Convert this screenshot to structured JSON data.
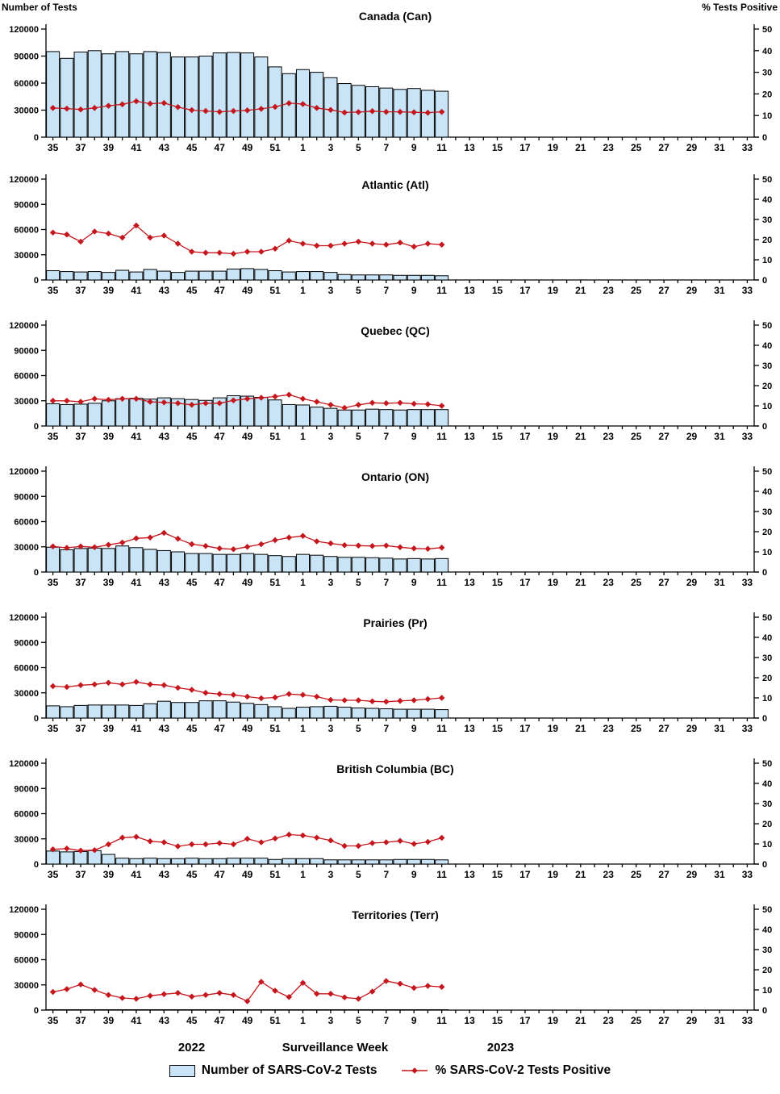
{
  "header": {
    "left_axis_title": "Number of Tests",
    "right_axis_title": "%  Tests Positive"
  },
  "footer": {
    "year_left": "2022",
    "axis_title": "Surveillance Week",
    "year_right": "2023"
  },
  "legend": {
    "tests_label": "Number of SARS-CoV-2 Tests",
    "pct_label": "% SARS-CoV-2 Tests Positive"
  },
  "colors": {
    "bar_fill": "#C8E4F6",
    "bar_stroke": "#000000",
    "line": "#C4161C",
    "axis": "#000000"
  },
  "axis": {
    "ylim_left": [
      0,
      120000
    ],
    "left_tick_step": 30000,
    "ylim_right": [
      0,
      50
    ],
    "right_tick_step": 10,
    "weeks_2022": [
      35,
      36,
      37,
      38,
      39,
      40,
      41,
      42,
      43,
      44,
      45,
      46,
      47,
      48,
      49,
      50,
      51,
      52
    ],
    "weeks_2023": [
      1,
      2,
      3,
      4,
      5,
      6,
      7,
      8,
      9,
      10,
      11,
      12,
      13,
      14,
      15,
      16,
      17,
      18,
      19,
      20,
      21,
      22,
      23,
      24,
      25,
      26,
      27,
      28,
      29,
      30,
      31,
      32,
      33
    ]
  },
  "chart_data": [
    {
      "type": "bar+line",
      "title": "Canada (Can)",
      "weeks": [
        35,
        36,
        37,
        38,
        39,
        40,
        41,
        42,
        43,
        44,
        45,
        46,
        47,
        48,
        49,
        50,
        51,
        52,
        1,
        2,
        3,
        4,
        5,
        6,
        7,
        8,
        9,
        10,
        11
      ],
      "tests": [
        95000,
        87500,
        94500,
        96000,
        92500,
        95000,
        92500,
        95000,
        94000,
        89000,
        89000,
        90000,
        93500,
        94000,
        93500,
        89000,
        78000,
        70500,
        75000,
        72000,
        66000,
        59500,
        57500,
        56000,
        54500,
        53000,
        54000,
        52000,
        51000
      ],
      "pct_positive": [
        13.5,
        13.2,
        12.8,
        13.5,
        14.5,
        15.2,
        16.6,
        15.5,
        15.8,
        13.9,
        12.5,
        12.1,
        11.7,
        12.1,
        12.4,
        13.1,
        14.0,
        15.7,
        15.3,
        13.5,
        12.6,
        11.4,
        11.6,
        12.0,
        11.7,
        11.7,
        11.5,
        11.3,
        11.7
      ]
    },
    {
      "type": "bar+line",
      "title": "Atlantic (Atl)",
      "weeks": [
        35,
        36,
        37,
        38,
        39,
        40,
        41,
        42,
        43,
        44,
        45,
        46,
        47,
        48,
        49,
        50,
        51,
        52,
        1,
        2,
        3,
        4,
        5,
        6,
        7,
        8,
        9,
        10,
        11
      ],
      "tests": [
        11000,
        10000,
        9500,
        10000,
        9000,
        11500,
        9500,
        12500,
        10500,
        9000,
        10500,
        10500,
        10500,
        13000,
        13500,
        12500,
        11000,
        9500,
        10000,
        10000,
        9000,
        6500,
        6000,
        6000,
        6000,
        5500,
        5500,
        5500,
        5000
      ],
      "pct_positive": [
        23.5,
        22.5,
        19.0,
        24.0,
        23.0,
        21.0,
        27.0,
        21.0,
        22.0,
        18.0,
        14.0,
        13.5,
        13.5,
        13.0,
        14.0,
        14.0,
        15.5,
        19.5,
        18.0,
        17.0,
        17.0,
        18.0,
        19.0,
        18.0,
        17.5,
        18.5,
        16.5,
        18.0,
        17.5
      ]
    },
    {
      "type": "bar+line",
      "title": "Quebec (QC)",
      "weeks": [
        35,
        36,
        37,
        38,
        39,
        40,
        41,
        42,
        43,
        44,
        45,
        46,
        47,
        48,
        49,
        50,
        51,
        52,
        1,
        2,
        3,
        4,
        5,
        6,
        7,
        8,
        9,
        10,
        11
      ],
      "tests": [
        26500,
        25500,
        26000,
        27000,
        30000,
        32500,
        33000,
        32000,
        33500,
        32500,
        31500,
        30500,
        33500,
        36000,
        35500,
        34000,
        31000,
        25500,
        25000,
        22500,
        21000,
        19000,
        19000,
        20000,
        19500,
        19000,
        19500,
        19500,
        19500
      ],
      "pct_positive": [
        12.5,
        12.5,
        12.0,
        13.5,
        13.0,
        13.5,
        13.5,
        12.0,
        11.7,
        11.3,
        10.5,
        11.3,
        11.3,
        12.7,
        13.5,
        14.0,
        14.6,
        15.5,
        13.5,
        12.0,
        10.5,
        9.0,
        10.5,
        11.5,
        11.3,
        11.5,
        11.0,
        10.8,
        10.0
      ]
    },
    {
      "type": "bar+line",
      "title": "Ontario (ON)",
      "weeks": [
        35,
        36,
        37,
        38,
        39,
        40,
        41,
        42,
        43,
        44,
        45,
        46,
        47,
        48,
        49,
        50,
        51,
        52,
        1,
        2,
        3,
        4,
        5,
        6,
        7,
        8,
        9,
        10,
        11
      ],
      "tests": [
        29500,
        26500,
        28000,
        28500,
        28000,
        31000,
        29000,
        27000,
        25500,
        24000,
        22000,
        22000,
        21000,
        21000,
        22000,
        21000,
        19500,
        18500,
        21000,
        20000,
        18500,
        17500,
        17500,
        17000,
        16500,
        15500,
        16000,
        15500,
        16000
      ],
      "pct_positive": [
        12.7,
        12.0,
        12.7,
        12.3,
        13.5,
        14.6,
        16.7,
        17.1,
        19.4,
        16.5,
        13.8,
        12.9,
        11.7,
        11.3,
        12.5,
        13.8,
        15.8,
        17.1,
        17.9,
        15.2,
        14.2,
        13.3,
        13.1,
        12.9,
        13.1,
        12.3,
        11.7,
        11.5,
        12.1
      ]
    },
    {
      "type": "bar+line",
      "title": "Prairies (Pr)",
      "weeks": [
        35,
        36,
        37,
        38,
        39,
        40,
        41,
        42,
        43,
        44,
        45,
        46,
        47,
        48,
        49,
        50,
        51,
        52,
        1,
        2,
        3,
        4,
        5,
        6,
        7,
        8,
        9,
        10,
        11
      ],
      "tests": [
        14500,
        13500,
        15000,
        15500,
        15500,
        15500,
        15000,
        17000,
        20000,
        18500,
        18500,
        20500,
        20500,
        19000,
        17500,
        16000,
        13500,
        11500,
        13000,
        13500,
        14000,
        13000,
        12000,
        11500,
        11000,
        10500,
        10500,
        10500,
        10000
      ],
      "pct_positive": [
        15.8,
        15.4,
        16.3,
        16.7,
        17.5,
        16.7,
        17.9,
        16.7,
        16.3,
        15.0,
        14.0,
        12.5,
        11.9,
        11.5,
        10.6,
        9.8,
        10.2,
        11.9,
        11.5,
        10.6,
        9.0,
        8.8,
        8.8,
        8.3,
        8.1,
        8.5,
        8.8,
        9.4,
        10.0
      ]
    },
    {
      "type": "bar+line",
      "title": "British Columbia (BC)",
      "weeks": [
        35,
        36,
        37,
        38,
        39,
        40,
        41,
        42,
        43,
        44,
        45,
        46,
        47,
        48,
        49,
        50,
        51,
        52,
        1,
        2,
        3,
        4,
        5,
        6,
        7,
        8,
        9,
        10,
        11
      ],
      "tests": [
        15500,
        14500,
        15000,
        16000,
        11500,
        7000,
        6500,
        7000,
        6500,
        6500,
        7000,
        6500,
        6500,
        7000,
        7000,
        7000,
        5500,
        6500,
        6500,
        6500,
        5000,
        5000,
        5000,
        5000,
        5000,
        5500,
        5500,
        5500,
        5000
      ],
      "pct_positive": [
        7.3,
        7.7,
        6.7,
        6.9,
        9.8,
        13.1,
        13.5,
        11.3,
        10.8,
        8.8,
        9.8,
        9.8,
        10.4,
        9.8,
        12.5,
        10.8,
        12.7,
        14.6,
        14.2,
        13.1,
        11.7,
        9.0,
        9.0,
        10.4,
        10.8,
        11.5,
        10.0,
        11.0,
        13.0
      ]
    },
    {
      "type": "bar+line",
      "title": "Territories (Terr)",
      "weeks": [
        35,
        36,
        37,
        38,
        39,
        40,
        41,
        42,
        43,
        44,
        45,
        46,
        47,
        48,
        49,
        50,
        51,
        52,
        1,
        2,
        3,
        4,
        5,
        6,
        7,
        8,
        9,
        10,
        11
      ],
      "tests": [
        500,
        500,
        500,
        500,
        500,
        500,
        500,
        500,
        500,
        500,
        500,
        500,
        500,
        500,
        500,
        500,
        500,
        500,
        500,
        500,
        500,
        500,
        500,
        500,
        500,
        500,
        500,
        500,
        500
      ],
      "pct_positive": [
        9.0,
        10.4,
        12.7,
        10.0,
        7.5,
        6.0,
        5.6,
        7.1,
        7.9,
        8.5,
        6.7,
        7.5,
        8.5,
        7.5,
        4.4,
        14.0,
        9.6,
        6.5,
        13.5,
        8.1,
        8.1,
        6.3,
        5.6,
        9.2,
        14.4,
        13.1,
        11.0,
        12.0,
        11.5
      ]
    }
  ]
}
